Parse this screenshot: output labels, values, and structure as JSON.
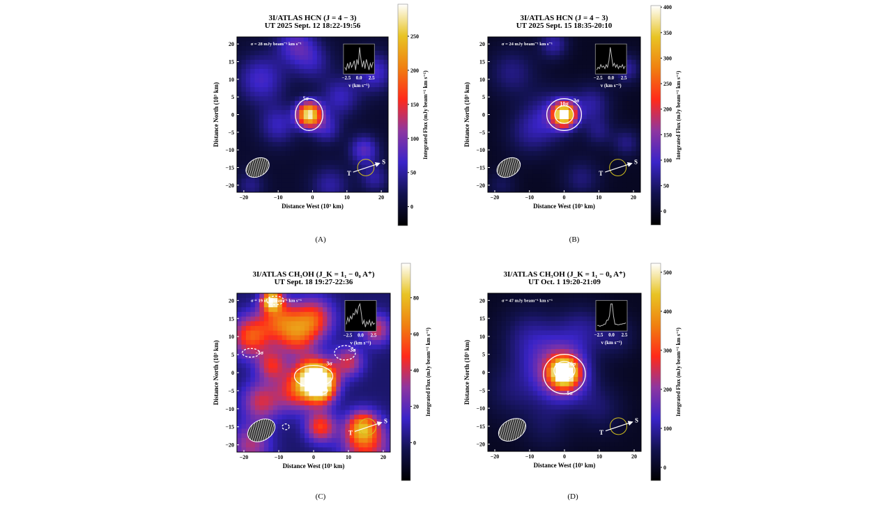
{
  "chart_data": [
    {
      "type": "heatmap",
      "panel_label": "(A)",
      "title": [
        "3I/ATLAS HCN (J = 4 − 3)",
        "UT 2025 Sept. 12 18:22-19:56"
      ],
      "xlabel": "Distance West (10³ km)",
      "ylabel": "Distance North (10³ km)",
      "xlim": [
        -22,
        22
      ],
      "ylim": [
        -22,
        22
      ],
      "xticks": [
        "−20",
        "−10",
        "0",
        "10",
        "20"
      ],
      "yticks": [
        "−20",
        "−15",
        "−10",
        "−5",
        "0",
        "5",
        "10",
        "15",
        "20"
      ],
      "sigma_text": "σ = 28 mJy beam⁻¹ km s⁻¹",
      "colorbar": {
        "label": "Integrated Flux (mJy beam⁻¹ km s⁻¹)",
        "range": [
          -28,
          297
        ],
        "ticks": [
          0,
          50,
          100,
          150,
          200,
          250
        ]
      },
      "sources": [
        {
          "x": -1,
          "y": 0,
          "sigma": 2.5,
          "peak": 280
        },
        {
          "x": -15,
          "y": 10,
          "sigma": 5,
          "peak": 70
        },
        {
          "x": -10,
          "y": -3,
          "sigma": 4,
          "peak": 60
        },
        {
          "x": 8,
          "y": 5,
          "sigma": 4,
          "peak": 60
        },
        {
          "x": 18,
          "y": 12,
          "sigma": 4,
          "peak": 70
        },
        {
          "x": 15,
          "y": -10,
          "sigma": 3,
          "peak": 80
        },
        {
          "x": -18,
          "y": -20,
          "sigma": 3,
          "peak": 40
        },
        {
          "x": 0,
          "y": 15,
          "sigma": 4,
          "peak": 50
        },
        {
          "x": -5,
          "y": 20,
          "sigma": 4,
          "peak": 75
        },
        {
          "x": 18,
          "y": -18,
          "sigma": 3,
          "peak": 50
        },
        {
          "x": 5,
          "y": -20,
          "sigma": 4,
          "peak": 50
        },
        {
          "x": 4,
          "y": -4,
          "sigma": 3,
          "peak": 60
        }
      ],
      "contours": [
        {
          "label": "5σ",
          "style": "solid",
          "x": -1,
          "y": 0,
          "rx": 4,
          "ry": 4.5,
          "label_x": -2,
          "label_y": 4
        }
      ],
      "inset": {
        "xticks": [
          "−2.5",
          "0.0",
          "2.5"
        ],
        "xlabel": "v (km s⁻¹)",
        "spectrum": [
          0.2,
          0.1,
          0.35,
          0.15,
          0.4,
          0.2,
          0.3,
          0.45,
          0.1,
          0.5,
          0.3,
          0.95,
          0.5,
          0.2,
          0.45,
          0.15,
          0.5,
          0.3,
          0.1,
          0.35,
          0.2,
          0.4
        ]
      },
      "sun_label": "S",
      "earth_label": "T"
    },
    {
      "type": "heatmap",
      "panel_label": "(B)",
      "title": [
        "3I/ATLAS HCN (J = 4 − 3)",
        "UT 2025 Sept. 15 18:35-20:10"
      ],
      "xlabel": "Distance West (10³ km)",
      "ylabel": "Distance North (10³ km)",
      "xlim": [
        -22,
        22
      ],
      "ylim": [
        -22,
        22
      ],
      "xticks": [
        "−20",
        "−10",
        "0",
        "10",
        "20"
      ],
      "yticks": [
        "−20",
        "−15",
        "−10",
        "−5",
        "0",
        "5",
        "10",
        "15",
        "20"
      ],
      "sigma_text": "σ = 24 mJy beam⁻¹ km s⁻¹",
      "colorbar": {
        "label": "Integrated Flux (mJy beam⁻¹ km s⁻¹)",
        "range": [
          -27,
          403
        ],
        "ticks": [
          0,
          50,
          100,
          150,
          200,
          250,
          300,
          350,
          400
        ]
      },
      "sources": [
        {
          "x": 0,
          "y": 0,
          "sigma": 2.3,
          "peak": 390
        },
        {
          "x": -3,
          "y": 0,
          "sigma": 5,
          "peak": 80
        },
        {
          "x": -15,
          "y": 12,
          "sigma": 5,
          "peak": 60
        },
        {
          "x": -10,
          "y": -5,
          "sigma": 5,
          "peak": 60
        },
        {
          "x": 8,
          "y": 3,
          "sigma": 4,
          "peak": 70
        },
        {
          "x": 18,
          "y": 13,
          "sigma": 3,
          "peak": 75
        },
        {
          "x": 18,
          "y": -8,
          "sigma": 3,
          "peak": 60
        },
        {
          "x": -3,
          "y": 20,
          "sigma": 3,
          "peak": 80
        },
        {
          "x": -18,
          "y": -20,
          "sigma": 3,
          "peak": 40
        },
        {
          "x": 5,
          "y": -18,
          "sigma": 4,
          "peak": 55
        },
        {
          "x": 10,
          "y": -5,
          "sigma": 3,
          "peak": 50
        }
      ],
      "contours": [
        {
          "label": "3σ",
          "style": "solid",
          "x": 0,
          "y": 0,
          "rx": 5,
          "ry": 4.5,
          "label_x": 3.5,
          "label_y": 3.5
        },
        {
          "label": "10σ",
          "style": "solid",
          "x": 0,
          "y": 0,
          "rx": 2.7,
          "ry": 2.5,
          "label_x": 0,
          "label_y": 2.6
        }
      ],
      "inset": {
        "xticks": [
          "−2.5",
          "0.0",
          "2.5"
        ],
        "xlabel": "v (km s⁻¹)",
        "spectrum": [
          0.1,
          0.2,
          0.15,
          0.3,
          0.2,
          0.25,
          0.15,
          0.3,
          0.2,
          0.45,
          0.95,
          0.6,
          0.25,
          0.35,
          0.2,
          0.3,
          0.15,
          0.25,
          0.2,
          0.3,
          0.15,
          0.25
        ]
      },
      "sun_label": "S",
      "earth_label": "T"
    },
    {
      "type": "heatmap",
      "panel_label": "(C)",
      "title": [
        "3I/ATLAS CH₃OH (J_K = 1₁ − 0₀ A⁺)",
        "UT Sept. 18 19:27-22:36"
      ],
      "xlabel": "Distance West (10³ km)",
      "ylabel": "Distance North (10³ km)",
      "xlim": [
        -22,
        22
      ],
      "ylim": [
        -22,
        22
      ],
      "xticks": [
        "−20",
        "−10",
        "0",
        "10",
        "20"
      ],
      "yticks": [
        "−20",
        "−15",
        "−10",
        "−5",
        "0",
        "5",
        "10",
        "15",
        "20"
      ],
      "sigma_text": "σ = 19 mJy beam⁻¹ km s⁻¹",
      "colorbar": {
        "label": "Integrated Flux (mJy beam⁻¹ km s⁻¹)",
        "range": [
          -21,
          99
        ],
        "ticks": [
          0,
          20,
          40,
          60,
          80
        ]
      },
      "sources": [
        {
          "x": 0,
          "y": -1,
          "sigma": 3.5,
          "peak": 85
        },
        {
          "x": 3,
          "y": -2,
          "sigma": 3,
          "peak": 35
        },
        {
          "x": -18,
          "y": 10,
          "sigma": 4,
          "peak": 55
        },
        {
          "x": -12,
          "y": 20,
          "sigma": 2,
          "peak": 85
        },
        {
          "x": -10,
          "y": 15,
          "sigma": 4,
          "peak": 45
        },
        {
          "x": 0,
          "y": 15,
          "sigma": 4,
          "peak": 50
        },
        {
          "x": -5,
          "y": -5,
          "sigma": 4,
          "peak": 45
        },
        {
          "x": 2,
          "y": -5,
          "sigma": 3,
          "peak": 55
        },
        {
          "x": -15,
          "y": -8,
          "sigma": 4,
          "peak": 40
        },
        {
          "x": -12,
          "y": 2,
          "sigma": 3,
          "peak": 40
        },
        {
          "x": 14,
          "y": -15,
          "sigma": 3,
          "peak": 55
        },
        {
          "x": 2,
          "y": -15,
          "sigma": 3,
          "peak": 50
        },
        {
          "x": 15,
          "y": -20,
          "sigma": 5,
          "peak": 45
        },
        {
          "x": -18,
          "y": -20,
          "sigma": 4,
          "peak": 35
        },
        {
          "x": -5,
          "y": 10,
          "sigma": 4,
          "peak": 45
        },
        {
          "x": 18,
          "y": 12,
          "sigma": 3,
          "peak": 40
        },
        {
          "x": 10,
          "y": 3,
          "sigma": 3,
          "peak": 40
        }
      ],
      "contours": [
        {
          "label": "3σ",
          "style": "solid",
          "x": 0,
          "y": -1,
          "rx": 5.5,
          "ry": 3,
          "label_x": 4.5,
          "label_y": 2
        },
        {
          "label": "3σ",
          "style": "solid",
          "x": 2,
          "y": -5,
          "rx": 2,
          "ry": 1,
          "label_x": 2,
          "label_y": -4.5
        },
        {
          "label": "-3σ",
          "style": "dashed",
          "x": -18,
          "y": 5.5,
          "rx": 2.5,
          "ry": 1.2,
          "label_x": -15.5,
          "label_y": 5
        },
        {
          "label": "-3σ",
          "style": "dashed",
          "x": 9,
          "y": 5.5,
          "rx": 3,
          "ry": 2,
          "label_x": 11,
          "label_y": 8.5
        },
        {
          "label": "",
          "style": "dashed",
          "x": -8,
          "y": -15,
          "rx": 1,
          "ry": 0.8,
          "label_x": 0,
          "label_y": 0
        },
        {
          "label": "",
          "style": "dashed",
          "x": -11,
          "y": 20,
          "rx": 2.5,
          "ry": 1.2,
          "label_x": 0,
          "label_y": 0
        }
      ],
      "inset": {
        "xticks": [
          "−2.5",
          "0.0",
          "2.5"
        ],
        "xlabel": "v (km s⁻¹)",
        "spectrum": [
          0.2,
          0.45,
          0.3,
          0.5,
          0.4,
          0.6,
          0.55,
          0.75,
          0.6,
          0.85,
          0.95,
          0.6,
          0.2,
          0.35,
          0.1,
          0.3,
          0.2,
          0.35,
          0.15,
          0.3,
          0.2,
          0.25
        ]
      },
      "sun_label": "S",
      "earth_label": "T"
    },
    {
      "type": "heatmap",
      "panel_label": "(D)",
      "title": [
        "3I/ATLAS CH₃OH (J_K = 1₁ − 0₀ A⁺)",
        "UT Oct. 1 19:20-21:09"
      ],
      "xlabel": "Distance West (10³ km)",
      "ylabel": "Distance North (10³ km)",
      "xlim": [
        -22,
        22
      ],
      "ylim": [
        -22,
        22
      ],
      "xticks": [
        "−20",
        "−10",
        "0",
        "10",
        "20"
      ],
      "yticks": [
        "−20",
        "−15",
        "−10",
        "−5",
        "0",
        "5",
        "10",
        "15",
        "20"
      ],
      "sigma_text": "σ = 47 mJy beam⁻¹ km s⁻¹",
      "colorbar": {
        "label": "Integrated Flux (mJy beam⁻¹ km s⁻¹)",
        "range": [
          -34,
          523
        ],
        "ticks": [
          0,
          100,
          200,
          300,
          400,
          500
        ]
      },
      "sources": [
        {
          "x": 0,
          "y": 0,
          "sigma": 2.6,
          "peak": 420
        },
        {
          "x": 0,
          "y": -1,
          "sigma": 5,
          "peak": 200
        },
        {
          "x": -3,
          "y": 2,
          "sigma": 6,
          "peak": 110
        },
        {
          "x": -10,
          "y": 10,
          "sigma": 6,
          "peak": 80
        },
        {
          "x": 5,
          "y": 12,
          "sigma": 5,
          "peak": 80
        },
        {
          "x": -15,
          "y": -5,
          "sigma": 6,
          "peak": 60
        },
        {
          "x": 10,
          "y": -10,
          "sigma": 5,
          "peak": 60
        },
        {
          "x": 15,
          "y": 10,
          "sigma": 4,
          "peak": 60
        },
        {
          "x": -5,
          "y": -15,
          "sigma": 5,
          "peak": 50
        }
      ],
      "contours": [
        {
          "label": "5σ",
          "style": "solid",
          "x": 0,
          "y": -0.5,
          "rx": 6,
          "ry": 5.5,
          "label_x": 1.5,
          "label_y": -6.3
        },
        {
          "label": "10σ",
          "style": "solid",
          "x": 0,
          "y": 0.5,
          "rx": 3,
          "ry": 2.5,
          "label_x": 2,
          "label_y": 1.8
        }
      ],
      "inset": {
        "xticks": [
          "−2.5",
          "0.0",
          "2.5"
        ],
        "xlabel": "v (km s⁻¹)",
        "spectrum": [
          0.15,
          0.15,
          0.12,
          0.15,
          0.15,
          0.2,
          0.2,
          0.35,
          0.35,
          0.5,
          0.95,
          0.95,
          0.5,
          0.2,
          0.2,
          0.18,
          0.18,
          0.2,
          0.2,
          0.22,
          0.22,
          0.25
        ]
      },
      "sun_label": "S",
      "earth_label": "T"
    }
  ],
  "colormap": [
    "#000000",
    "#12124e",
    "#3a24c8",
    "#8e36a0",
    "#ff2a1a",
    "#f08010",
    "#e8c424",
    "#ffffff"
  ],
  "colors": {
    "contour": "#ffffff",
    "sun_circle": "#d4c21e",
    "inset_line": "#bbbbbb"
  }
}
